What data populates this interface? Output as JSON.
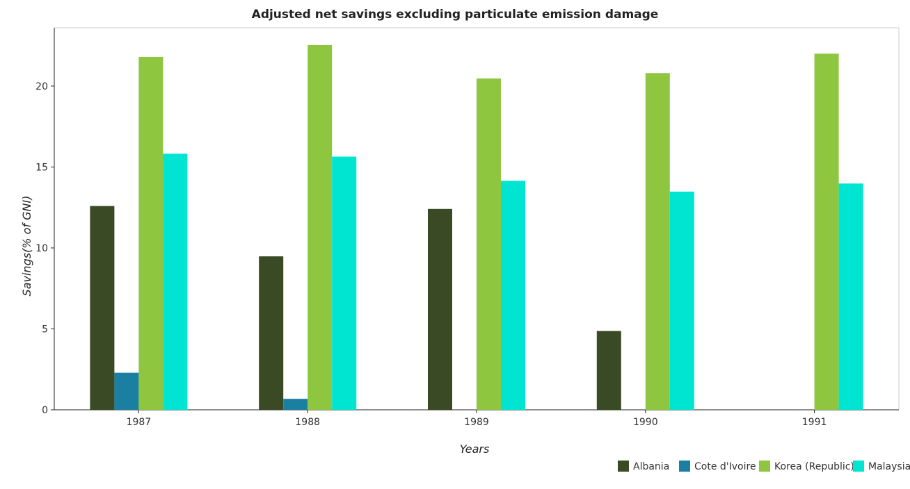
{
  "chart_data": {
    "type": "bar",
    "title": "Adjusted net savings excluding particulate emission damage",
    "xlabel": "Years",
    "ylabel": "Savings(% of GNI)",
    "categories": [
      "1987",
      "1988",
      "1989",
      "1990",
      "1991"
    ],
    "ylim": [
      0,
      23.6
    ],
    "yticks": [
      0,
      5,
      10,
      15,
      20
    ],
    "grid": false,
    "legend_position": "bottom-right",
    "series": [
      {
        "name": "Albania",
        "color": "#3a4a24",
        "values": [
          12.59,
          9.48,
          12.41,
          4.87,
          0
        ]
      },
      {
        "name": "Cote d'Ivoire",
        "color": "#1a7fa0",
        "values": [
          2.29,
          0.68,
          0,
          0,
          0
        ]
      },
      {
        "name": "Korea (Republic)",
        "color": "#8ec63f",
        "values": [
          21.8,
          22.53,
          20.47,
          20.8,
          22.0
        ]
      },
      {
        "name": "Malaysia",
        "color": "#00e5d1",
        "values": [
          15.82,
          15.64,
          14.15,
          13.48,
          13.98
        ]
      }
    ]
  }
}
